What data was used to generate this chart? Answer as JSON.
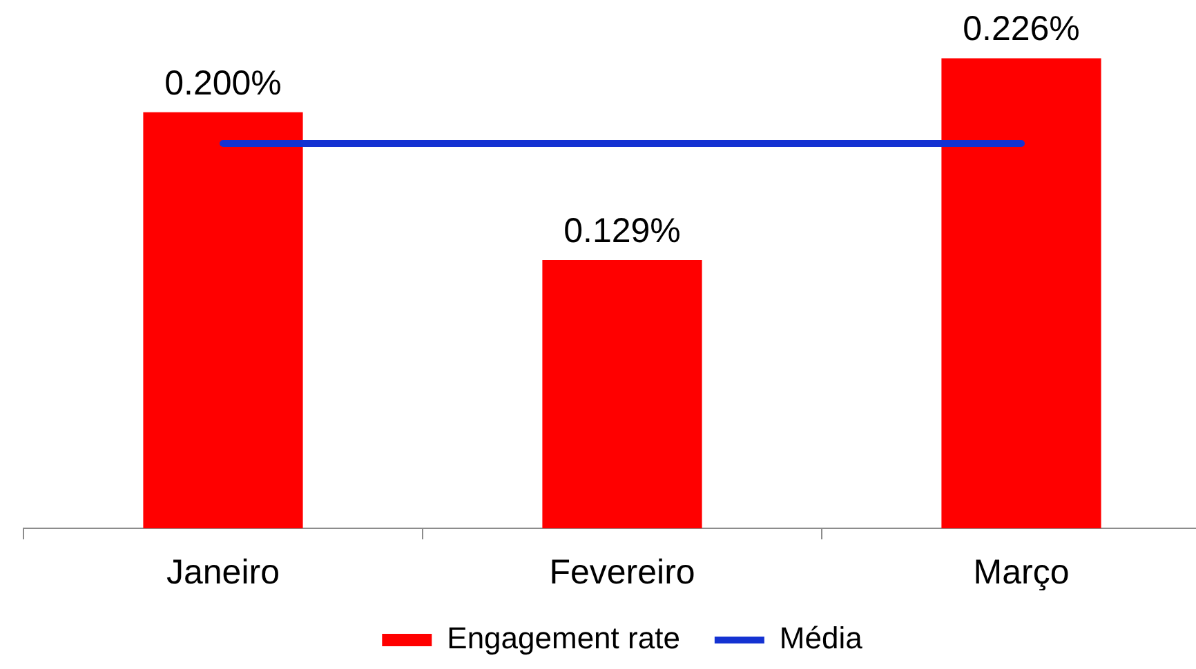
{
  "chart_data": {
    "type": "bar",
    "categories": [
      "Janeiro",
      "Fevereiro",
      "Março"
    ],
    "series": [
      {
        "name": "Engagement rate",
        "type": "bar",
        "color": "#ff0000",
        "values": [
          0.2,
          0.129,
          0.226
        ],
        "value_labels": [
          "0.200%",
          "0.129%",
          "0.226%"
        ]
      },
      {
        "name": "Média",
        "type": "line",
        "color": "#1432d2",
        "values": [
          0.185,
          0.185,
          0.185
        ]
      }
    ],
    "legend": "bottom",
    "grid": false,
    "marker": "none"
  }
}
